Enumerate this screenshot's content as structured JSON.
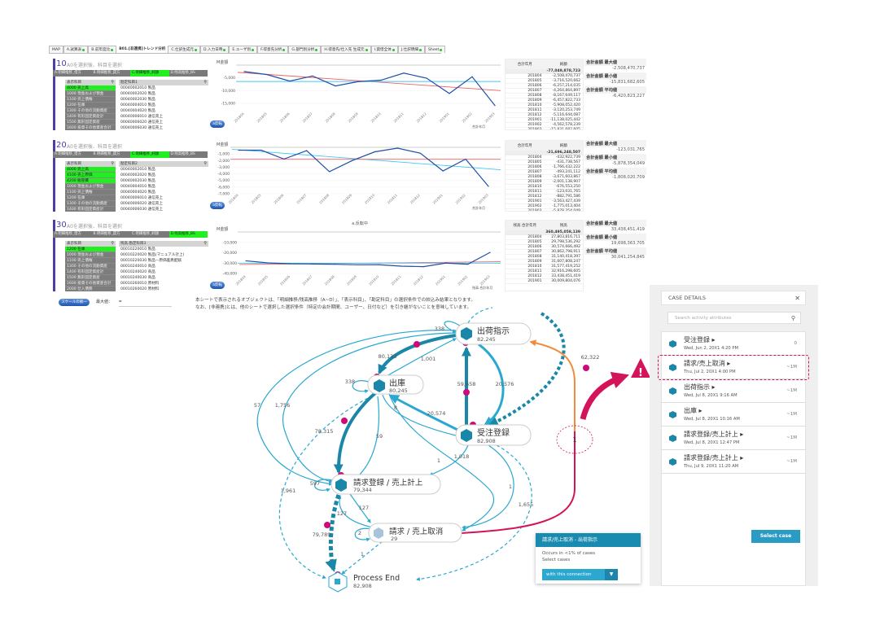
{
  "tabs": [
    {
      "label": "MAP",
      "dot": false
    },
    {
      "label": "A.試算表",
      "dot": true
    },
    {
      "label": "B.前年度比",
      "dot": true
    },
    {
      "label": "B01.[非連携]トレンド分析",
      "dot": false,
      "active": true
    },
    {
      "label": "C.仕訳生成元",
      "dot": true
    },
    {
      "label": "D.入力日時",
      "dot": true
    },
    {
      "label": "E.ユーザ別",
      "dot": true
    },
    {
      "label": "F.得意先分析",
      "dot": true
    },
    {
      "label": "G.部門別分析",
      "dot": true
    },
    {
      "label": "H.得意先/仕入先 生成元",
      "dot": true
    },
    {
      "label": "I.貸借全体",
      "dot": true
    },
    {
      "label": "J.仕訳明細",
      "dot": true
    },
    {
      "label": "Sheet",
      "dot": true
    }
  ],
  "sections": [
    {
      "num": "10",
      "title": "A0を選択後、科目を選択",
      "seltabs": [
        "A.明細推移_借方",
        "B.明細推移_貸方",
        "C.明細推移_純額",
        "D.残高推移_BS"
      ],
      "sel_on": 2,
      "list1_header": "表示科目",
      "list1": [
        {
          "t": "4000 売上高",
          "s": true
        },
        {
          "t": "1000 現金および預金"
        },
        {
          "t": "1100 売上債権"
        },
        {
          "t": "1200 在庫"
        },
        {
          "t": "1300 その他の流動資産"
        },
        {
          "t": "1400 有形固定資産計"
        },
        {
          "t": "1500 無形固定資産"
        },
        {
          "t": "1600 投資その他資産合計"
        }
      ],
      "list2_header": "勘定科目1",
      "list2": [
        "00040002010 製品",
        "00040002020 製品",
        "00040002030 製品",
        "00040004010 製品",
        "00040004020 製品",
        "00040006010 通信売上",
        "00040006020 通信売上",
        "00040006030 通信売上"
      ],
      "button": "a反転",
      "table_headers": [
        "合計年月",
        "純額"
      ],
      "table_total": "-77,049,878,723",
      "table_rows": [
        [
          "201804",
          "-2,508,470,737"
        ],
        [
          "201805",
          "-3,716,520,662"
        ],
        [
          "201806",
          "-6,257,214,035"
        ],
        [
          "201807",
          "-4,264,864,897"
        ],
        [
          "201808",
          "-8,167,649,117"
        ],
        [
          "201809",
          "-6,457,822,733"
        ],
        [
          "201810",
          "-5,908,052,420"
        ],
        [
          "201811",
          "-3,120,253,749"
        ],
        [
          "201812",
          "-5,116,644,087"
        ],
        [
          "201901",
          "-11,138,025,442"
        ],
        [
          "201902",
          "-4,562,578,239"
        ],
        [
          "201903",
          "-15,831,682,605"
        ]
      ],
      "stats": [
        {
          "k": "合計金額 最大値",
          "v": "-2,508,470,737"
        },
        {
          "k": "合計金額 最小値",
          "v": "-15,831,682,605"
        },
        {
          "k": "合計金額 平均値",
          "v": "-6,420,823,227"
        }
      ],
      "legend": "合計年月"
    },
    {
      "num": "20",
      "title": "A0を選択後、科目を選択",
      "seltabs": [
        "A.明細推移_借方",
        "B.明細推移_貸方",
        "C.明細推移_純額",
        "D.残高推移_BS"
      ],
      "sel_on": 2,
      "list1_header": "表示科目",
      "list1": [
        {
          "t": "4000 売上高",
          "s": true
        },
        {
          "t": "4100 売上原価",
          "s": true
        },
        {
          "t": "4200 販管費",
          "s": true
        },
        {
          "t": "1000 現金および預金"
        },
        {
          "t": "1100 売上債権"
        },
        {
          "t": "1200 在庫"
        },
        {
          "t": "1300 その他の流動資産"
        },
        {
          "t": "1400 有形固定資産計"
        }
      ],
      "list2_header": "勘定科目2",
      "list2": [
        "00040002010 製品",
        "00040002020 製品",
        "00040002030 製品",
        "00040004010 製品",
        "00040004020 製品",
        "00040006010 通信売上",
        "00040006020 通信売上",
        "00040006030 通信売上"
      ],
      "button": "a反転",
      "table_headers": [
        "合計年月",
        "純額"
      ],
      "table_total": "-21,696,248,507",
      "table_rows": [
        [
          "201804",
          "-432,922,739"
        ],
        [
          "201805",
          "-431,738,567"
        ],
        [
          "201806",
          "-1,766,432,222"
        ],
        [
          "201807",
          "-493,241,112"
        ],
        [
          "201808",
          "-3,671,603,867"
        ],
        [
          "201809",
          "-2,001,138,907"
        ],
        [
          "201810",
          "-676,553,250"
        ],
        [
          "201811",
          "-123,031,765"
        ],
        [
          "201812",
          "-882,791,586"
        ],
        [
          "201901",
          "-3,563,427,439"
        ],
        [
          "201902",
          "-1,775,013,404"
        ],
        [
          "201903",
          "-5,878,354,049"
        ]
      ],
      "stats": [
        {
          "k": "合計金額 最大値",
          "v": "-123,031,765"
        },
        {
          "k": "合計金額 最小値",
          "v": "-5,878,354,049"
        },
        {
          "k": "合計金額 平均値",
          "v": "-1,808,020,709"
        }
      ],
      "legend": "合計年月"
    },
    {
      "num": "30",
      "title": "A0を選択後、科目を選択",
      "seltabs": [
        "A.明細推移_借方",
        "B.明細推移_貸方",
        "C.明細推移_純額",
        "D.残高推移_BS"
      ],
      "sel_on": 3,
      "list1_header": "表示科目",
      "list1": [
        {
          "t": "1200 在庫",
          "s": true
        },
        {
          "t": "1000 現金および預金"
        },
        {
          "t": "1100 売上債権"
        },
        {
          "t": "1300 その他の流動資産"
        },
        {
          "t": "1400 有形固定資産計"
        },
        {
          "t": "1500 無形固定資産"
        },
        {
          "t": "1600 投資その他資産合計"
        },
        {
          "t": "2000 仕入債務"
        }
      ],
      "list2_header": "残高.勘定科目3",
      "list2": [
        "00010220010 製品",
        "00010220020 製品(マニュアル計上)",
        "00010220030 製品—原価差異配賦",
        "00010240010 商品",
        "00010240020 商品",
        "00010240030 商品",
        "00010260010 原材料",
        "00010260020 原材料"
      ],
      "button": "a反転",
      "table_headers": [
        "残高.合計年月",
        "残高"
      ],
      "table_total": "360,495,058,139",
      "table_rows": [
        [
          "201804",
          "27,803,816,711"
        ],
        [
          "201805",
          "29,798,536,292"
        ],
        [
          "201806",
          "30,574,666,492"
        ],
        [
          "201807",
          "30,862,798,911"
        ],
        [
          "201808",
          "31,140,418,397"
        ],
        [
          "201809",
          "31,607,808,247"
        ],
        [
          "201810",
          "31,577,419,252"
        ],
        [
          "201811",
          "32,916,298,605"
        ],
        [
          "201812",
          "33,438,451,419"
        ],
        [
          "201901",
          "30,009,804,076"
        ]
      ],
      "stats": [
        {
          "k": "合計金額 最大値",
          "v": "33,438,451,419"
        },
        {
          "k": "合計金額 最小値",
          "v": "19,698,363,705"
        },
        {
          "k": "合計金額 平均値",
          "v": "30,041,254,845"
        }
      ],
      "legend": "残高.合計年月"
    }
  ],
  "chart_data": [
    {
      "type": "line",
      "title": "",
      "ylabel": "M金額",
      "x": [
        "201804",
        "201805",
        "201806",
        "201807",
        "201808",
        "201809",
        "201810",
        "201811",
        "201812",
        "201901",
        "201902",
        "201903"
      ],
      "series": [
        {
          "name": "純額",
          "values": [
            -2508,
            -3717,
            -6257,
            -4265,
            -8168,
            -6458,
            -5908,
            -3120,
            -5117,
            -11138,
            -4563,
            -15832
          ],
          "color": "#1f4fa8"
        }
      ],
      "trend_color": "#f06060",
      "avg_color": "#40c8f0",
      "avg": -6421,
      "ylim": [
        -15000,
        0
      ],
      "yticks": [
        "-5,000",
        "-10,000",
        "-15,000"
      ],
      "ytick_values": [
        -5000,
        -10000,
        -15000
      ]
    },
    {
      "type": "line",
      "title": "",
      "ylabel": "M金額",
      "x": [
        "201804",
        "201805",
        "201806",
        "201807",
        "201808",
        "201809",
        "201810",
        "201811",
        "201812",
        "201901",
        "201902",
        "201903"
      ],
      "series": [
        {
          "name": "純額",
          "values": [
            -433,
            -432,
            -1766,
            -493,
            -3672,
            -2001,
            -677,
            -123,
            -883,
            -3563,
            -1775,
            -5878
          ],
          "color": "#1f4fa8"
        }
      ],
      "trend_color": "#40c8f0",
      "avg_color": "#f06060",
      "avg": -1808,
      "ylim": [
        -7000,
        0
      ],
      "yticks": [
        "-1,000",
        "-2,000",
        "-3,000",
        "-4,000",
        "-5,000",
        "-6,000",
        "-7,000"
      ],
      "ytick_values": [
        -1000,
        -2000,
        -3000,
        -4000,
        -5000,
        -6000,
        -7000
      ]
    },
    {
      "type": "line",
      "title": "a.反転中",
      "ylabel": "M金額",
      "x": [
        "201804",
        "201805",
        "201806",
        "201807",
        "201808",
        "201809",
        "201810",
        "201811",
        "201812",
        "201901",
        "201902",
        "201903"
      ],
      "series": [
        {
          "name": "残高",
          "values": [
            -27804,
            -29799,
            -30575,
            -30863,
            -31140,
            -31608,
            -31577,
            -32916,
            -33438,
            -30010,
            -31064,
            -19698
          ],
          "color": "#1f4fa8"
        }
      ],
      "trend_color": "#f06060",
      "avg_color": "#40c8f0",
      "avg": -30041,
      "ylim": [
        -40000,
        0
      ],
      "yticks": [
        "-10,000",
        "-20,000",
        "-30,000",
        "-40,000"
      ],
      "ytick_values": [
        -10000,
        -20000,
        -30000,
        -40000
      ]
    }
  ],
  "bottom": {
    "scale_button": "スケールの統一",
    "max_label": "最大値：",
    "max_value": "=",
    "note_line1": "本シートで表示されるオブジェクトは、「明細推移/残高推移（A~D）」、「表示科目」、「勘定科目」の選択条件での絞込み結果となります。",
    "note_line2": "なお、[非連携]とは、他のシートで選択した選択条件（特定の会計期間、ユーザー、日付など）を引き継がないことを意味しています。"
  },
  "process": {
    "nodes": {
      "shukka": {
        "name": "出荷指示",
        "count": "82,245"
      },
      "shukko": {
        "name": "出庫",
        "count": "80,245"
      },
      "juchu": {
        "name": "受注登録",
        "count": "82,908"
      },
      "seikyu": {
        "name": "請求登録 / 売上計上",
        "count": "79,344"
      },
      "torikeshi": {
        "name": "請求 / 売上取消",
        "count": "29"
      },
      "end": {
        "name": "Process End",
        "count": "82,908"
      }
    },
    "edges": {
      "e338a": "338",
      "e80133": "80,133",
      "e1001": "1,001",
      "e338b": "338",
      "e57": "57",
      "e1756": "1,756",
      "e59658": "59,658",
      "e20576": "20,576",
      "e62322": "62,322",
      "e8": "8",
      "e20574": "20,574",
      "e78315": "78,315",
      "e59": "59",
      "e1a": "1",
      "e1018": "1,018",
      "e1961": "1,961",
      "e597": "597",
      "e127a": "127",
      "e127b": "127",
      "e79789": "79,789",
      "e2": "2",
      "e1b": "1",
      "e1655": "1,655",
      "e1c": "1",
      "e1d": "1"
    },
    "colors": {
      "edge": "#2aa8d0",
      "edge_dark": "#1b87a8",
      "dot": "#d0087a",
      "highlight": "#d4145a",
      "orange": "#f08c3c"
    }
  },
  "popup": {
    "title": "請求/売上取消 - 出荷指示",
    "occurs": "Occurs in <1% of cases",
    "select": "Select cases",
    "button": "with this connection",
    "caret": "▼"
  },
  "case_details": {
    "title": "CASE DETAILS",
    "close": "✕",
    "search_placeholder": "Search activity attributes",
    "search_icon": "⚲",
    "select_button": "Select case",
    "items": [
      {
        "name": "受注登録 ▸",
        "date": "Wed, Jun 2, 20X1 4:20 PM",
        "dur": "0"
      },
      {
        "name": "請求/売上取消 ▸",
        "date": "Thu, Jul 2, 20X1 4:00 PM",
        "dur": "~1M",
        "highlight": true
      },
      {
        "name": "出荷指示 ▸",
        "date": "Wed, Jul 8, 20X1 9:16 AM",
        "dur": "~1M"
      },
      {
        "name": "出庫 ▸",
        "date": "Wed, Jul 8, 20X1 10:16 AM",
        "dur": "~1M"
      },
      {
        "name": "請求登録/売上計上 ▸",
        "date": "Wed, Jul 8, 20X1 12:47 PM",
        "dur": "~1M"
      },
      {
        "name": "請求登録/売上計上 ▸",
        "date": "Thu, Jul 9, 20X1 11:20 AM",
        "dur": "~1M"
      }
    ]
  },
  "warning": {
    "icon": "!"
  }
}
